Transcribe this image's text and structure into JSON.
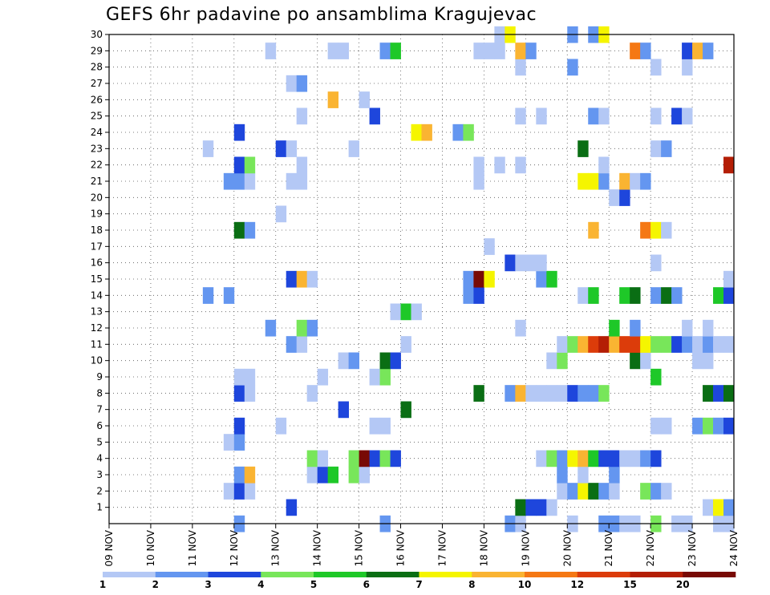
{
  "chart_data": {
    "type": "heatmap",
    "title": "GEFS 6hr padavine po ansamblima Kragujevac",
    "xlabel": "",
    "ylabel": "",
    "x_unit": "6h steps from 09 NOV 00z",
    "x_range": [
      0,
      60
    ],
    "y_range": [
      0,
      30
    ],
    "x_tick_labels": [
      "09 NOV",
      "10 NOV",
      "11 NOV",
      "12 NOV",
      "13 NOV",
      "14 NOV",
      "15 NOV",
      "16 NOV",
      "17 NOV",
      "18 NOV",
      "19 NOV",
      "20 NOV",
      "21 NOV",
      "22 NOV",
      "23 NOV",
      "24 NOV"
    ],
    "y_tick_labels": [
      "1",
      "2",
      "3",
      "4",
      "5",
      "6",
      "7",
      "8",
      "9",
      "10",
      "11",
      "12",
      "13",
      "14",
      "15",
      "16",
      "17",
      "18",
      "19",
      "20",
      "21",
      "22",
      "23",
      "24",
      "25",
      "26",
      "27",
      "28",
      "29",
      "30"
    ],
    "grid": true,
    "colorbar": {
      "labels": [
        "1",
        "2",
        "3",
        "4",
        "5",
        "6",
        "7",
        "8",
        "10",
        "12",
        "15",
        "20"
      ],
      "colors": [
        "#b4c8f5",
        "#6496f0",
        "#1e46dc",
        "#78e65a",
        "#1ec828",
        "#0a6e14",
        "#f5f500",
        "#fab432",
        "#f57814",
        "#dc3c0a",
        "#b41e05",
        "#780a05"
      ]
    },
    "cells": [
      [
        12,
        0,
        2
      ],
      [
        26,
        0,
        2
      ],
      [
        38,
        0,
        2
      ],
      [
        39,
        0,
        1
      ],
      [
        44,
        0,
        1
      ],
      [
        47,
        0,
        2
      ],
      [
        48,
        0,
        2
      ],
      [
        49,
        0,
        1
      ],
      [
        50,
        0,
        1
      ],
      [
        52,
        0,
        4
      ],
      [
        54,
        0,
        1
      ],
      [
        55,
        0,
        1
      ],
      [
        58,
        0,
        1
      ],
      [
        59,
        0,
        1
      ],
      [
        17,
        1,
        3
      ],
      [
        39,
        1,
        6
      ],
      [
        40,
        1,
        3
      ],
      [
        41,
        1,
        3
      ],
      [
        42,
        1,
        1
      ],
      [
        57,
        1,
        1
      ],
      [
        58,
        1,
        7
      ],
      [
        59,
        1,
        2
      ],
      [
        11,
        2,
        1
      ],
      [
        12,
        2,
        3
      ],
      [
        13,
        2,
        1
      ],
      [
        43,
        2,
        1
      ],
      [
        44,
        2,
        2
      ],
      [
        45,
        2,
        7
      ],
      [
        46,
        2,
        6
      ],
      [
        47,
        2,
        2
      ],
      [
        48,
        2,
        1
      ],
      [
        51,
        2,
        4
      ],
      [
        52,
        2,
        2
      ],
      [
        53,
        2,
        1
      ],
      [
        12,
        3,
        2
      ],
      [
        13,
        3,
        8
      ],
      [
        19,
        3,
        1
      ],
      [
        20,
        3,
        3
      ],
      [
        21,
        3,
        5
      ],
      [
        23,
        3,
        4
      ],
      [
        24,
        3,
        1
      ],
      [
        43,
        3,
        2
      ],
      [
        45,
        3,
        1
      ],
      [
        48,
        3,
        2
      ],
      [
        19,
        4,
        4
      ],
      [
        20,
        4,
        1
      ],
      [
        23,
        4,
        4
      ],
      [
        24,
        4,
        12
      ],
      [
        25,
        4,
        3
      ],
      [
        26,
        4,
        4
      ],
      [
        27,
        4,
        3
      ],
      [
        41,
        4,
        1
      ],
      [
        42,
        4,
        4
      ],
      [
        43,
        4,
        2
      ],
      [
        44,
        4,
        7
      ],
      [
        45,
        4,
        8
      ],
      [
        46,
        4,
        5
      ],
      [
        47,
        4,
        3
      ],
      [
        48,
        4,
        3
      ],
      [
        49,
        4,
        1
      ],
      [
        50,
        4,
        1
      ],
      [
        51,
        4,
        2
      ],
      [
        52,
        4,
        3
      ],
      [
        11,
        5,
        1
      ],
      [
        12,
        5,
        2
      ],
      [
        12,
        6,
        3
      ],
      [
        16,
        6,
        1
      ],
      [
        25,
        6,
        1
      ],
      [
        26,
        6,
        1
      ],
      [
        52,
        6,
        1
      ],
      [
        53,
        6,
        1
      ],
      [
        56,
        6,
        2
      ],
      [
        57,
        6,
        4
      ],
      [
        58,
        6,
        2
      ],
      [
        59,
        6,
        3
      ],
      [
        22,
        7,
        3
      ],
      [
        28,
        7,
        6
      ],
      [
        12,
        8,
        3
      ],
      [
        13,
        8,
        1
      ],
      [
        19,
        8,
        1
      ],
      [
        35,
        8,
        6
      ],
      [
        38,
        8,
        2
      ],
      [
        39,
        8,
        8
      ],
      [
        40,
        8,
        1
      ],
      [
        41,
        8,
        1
      ],
      [
        42,
        8,
        1
      ],
      [
        43,
        8,
        1
      ],
      [
        44,
        8,
        3
      ],
      [
        45,
        8,
        2
      ],
      [
        46,
        8,
        2
      ],
      [
        47,
        8,
        4
      ],
      [
        57,
        8,
        6
      ],
      [
        58,
        8,
        3
      ],
      [
        59,
        8,
        6
      ],
      [
        12,
        9,
        1
      ],
      [
        13,
        9,
        1
      ],
      [
        20,
        9,
        1
      ],
      [
        25,
        9,
        1
      ],
      [
        26,
        9,
        4
      ],
      [
        52,
        9,
        5
      ],
      [
        22,
        10,
        1
      ],
      [
        23,
        10,
        2
      ],
      [
        26,
        10,
        6
      ],
      [
        27,
        10,
        3
      ],
      [
        42,
        10,
        1
      ],
      [
        43,
        10,
        4
      ],
      [
        50,
        10,
        6
      ],
      [
        51,
        10,
        1
      ],
      [
        56,
        10,
        1
      ],
      [
        57,
        10,
        1
      ],
      [
        17,
        11,
        2
      ],
      [
        18,
        11,
        1
      ],
      [
        28,
        11,
        1
      ],
      [
        43,
        11,
        1
      ],
      [
        44,
        11,
        4
      ],
      [
        45,
        11,
        8
      ],
      [
        46,
        11,
        10
      ],
      [
        47,
        11,
        11
      ],
      [
        48,
        11,
        8
      ],
      [
        49,
        11,
        10
      ],
      [
        50,
        11,
        10
      ],
      [
        51,
        11,
        7
      ],
      [
        52,
        11,
        4
      ],
      [
        53,
        11,
        4
      ],
      [
        54,
        11,
        3
      ],
      [
        55,
        11,
        2
      ],
      [
        56,
        11,
        1
      ],
      [
        57,
        11,
        2
      ],
      [
        58,
        11,
        1
      ],
      [
        59,
        11,
        1
      ],
      [
        15,
        12,
        2
      ],
      [
        18,
        12,
        4
      ],
      [
        19,
        12,
        2
      ],
      [
        39,
        12,
        1
      ],
      [
        48,
        12,
        5
      ],
      [
        50,
        12,
        2
      ],
      [
        55,
        12,
        1
      ],
      [
        57,
        12,
        1
      ],
      [
        27,
        13,
        1
      ],
      [
        28,
        13,
        5
      ],
      [
        29,
        13,
        1
      ],
      [
        9,
        14,
        2
      ],
      [
        11,
        14,
        2
      ],
      [
        34,
        14,
        2
      ],
      [
        35,
        14,
        3
      ],
      [
        45,
        14,
        1
      ],
      [
        46,
        14,
        5
      ],
      [
        49,
        14,
        5
      ],
      [
        50,
        14,
        6
      ],
      [
        52,
        14,
        2
      ],
      [
        53,
        14,
        6
      ],
      [
        54,
        14,
        2
      ],
      [
        58,
        14,
        5
      ],
      [
        59,
        14,
        3
      ],
      [
        17,
        15,
        3
      ],
      [
        18,
        15,
        8
      ],
      [
        19,
        15,
        1
      ],
      [
        34,
        15,
        2
      ],
      [
        35,
        15,
        12
      ],
      [
        36,
        15,
        7
      ],
      [
        41,
        15,
        2
      ],
      [
        42,
        15,
        5
      ],
      [
        59,
        15,
        1
      ],
      [
        38,
        16,
        3
      ],
      [
        39,
        16,
        1
      ],
      [
        40,
        16,
        1
      ],
      [
        41,
        16,
        1
      ],
      [
        52,
        16,
        1
      ],
      [
        36,
        17,
        1
      ],
      [
        12,
        18,
        6
      ],
      [
        13,
        18,
        2
      ],
      [
        46,
        18,
        8
      ],
      [
        51,
        18,
        9
      ],
      [
        52,
        18,
        7
      ],
      [
        53,
        18,
        1
      ],
      [
        16,
        19,
        1
      ],
      [
        48,
        20,
        1
      ],
      [
        49,
        20,
        3
      ],
      [
        11,
        21,
        2
      ],
      [
        12,
        21,
        2
      ],
      [
        13,
        21,
        1
      ],
      [
        17,
        21,
        1
      ],
      [
        18,
        21,
        1
      ],
      [
        35,
        21,
        1
      ],
      [
        45,
        21,
        7
      ],
      [
        46,
        21,
        7
      ],
      [
        47,
        21,
        2
      ],
      [
        49,
        21,
        8
      ],
      [
        50,
        21,
        1
      ],
      [
        51,
        21,
        2
      ],
      [
        12,
        22,
        3
      ],
      [
        13,
        22,
        4
      ],
      [
        18,
        22,
        1
      ],
      [
        35,
        22,
        1
      ],
      [
        37,
        22,
        1
      ],
      [
        39,
        22,
        1
      ],
      [
        47,
        22,
        1
      ],
      [
        59,
        22,
        11
      ],
      [
        9,
        23,
        1
      ],
      [
        16,
        23,
        3
      ],
      [
        17,
        23,
        1
      ],
      [
        23,
        23,
        1
      ],
      [
        45,
        23,
        6
      ],
      [
        52,
        23,
        1
      ],
      [
        53,
        23,
        2
      ],
      [
        12,
        24,
        3
      ],
      [
        29,
        24,
        7
      ],
      [
        30,
        24,
        8
      ],
      [
        33,
        24,
        2
      ],
      [
        34,
        24,
        4
      ],
      [
        18,
        25,
        1
      ],
      [
        25,
        25,
        3
      ],
      [
        39,
        25,
        1
      ],
      [
        41,
        25,
        1
      ],
      [
        46,
        25,
        2
      ],
      [
        47,
        25,
        1
      ],
      [
        52,
        25,
        1
      ],
      [
        54,
        25,
        3
      ],
      [
        55,
        25,
        1
      ],
      [
        21,
        26,
        8
      ],
      [
        24,
        26,
        1
      ],
      [
        17,
        27,
        1
      ],
      [
        18,
        27,
        2
      ],
      [
        39,
        28,
        1
      ],
      [
        44,
        28,
        2
      ],
      [
        52,
        28,
        1
      ],
      [
        55,
        28,
        1
      ],
      [
        15,
        29,
        1
      ],
      [
        21,
        29,
        1
      ],
      [
        22,
        29,
        1
      ],
      [
        26,
        29,
        2
      ],
      [
        27,
        29,
        5
      ],
      [
        35,
        29,
        1
      ],
      [
        36,
        29,
        1
      ],
      [
        37,
        29,
        1
      ],
      [
        39,
        29,
        8
      ],
      [
        40,
        29,
        2
      ],
      [
        50,
        29,
        9
      ],
      [
        51,
        29,
        2
      ],
      [
        55,
        29,
        3
      ],
      [
        56,
        29,
        8
      ],
      [
        57,
        29,
        2
      ],
      [
        37,
        30,
        1
      ],
      [
        38,
        30,
        7
      ],
      [
        44,
        30,
        2
      ],
      [
        46,
        30,
        2
      ],
      [
        47,
        30,
        7
      ]
    ]
  }
}
